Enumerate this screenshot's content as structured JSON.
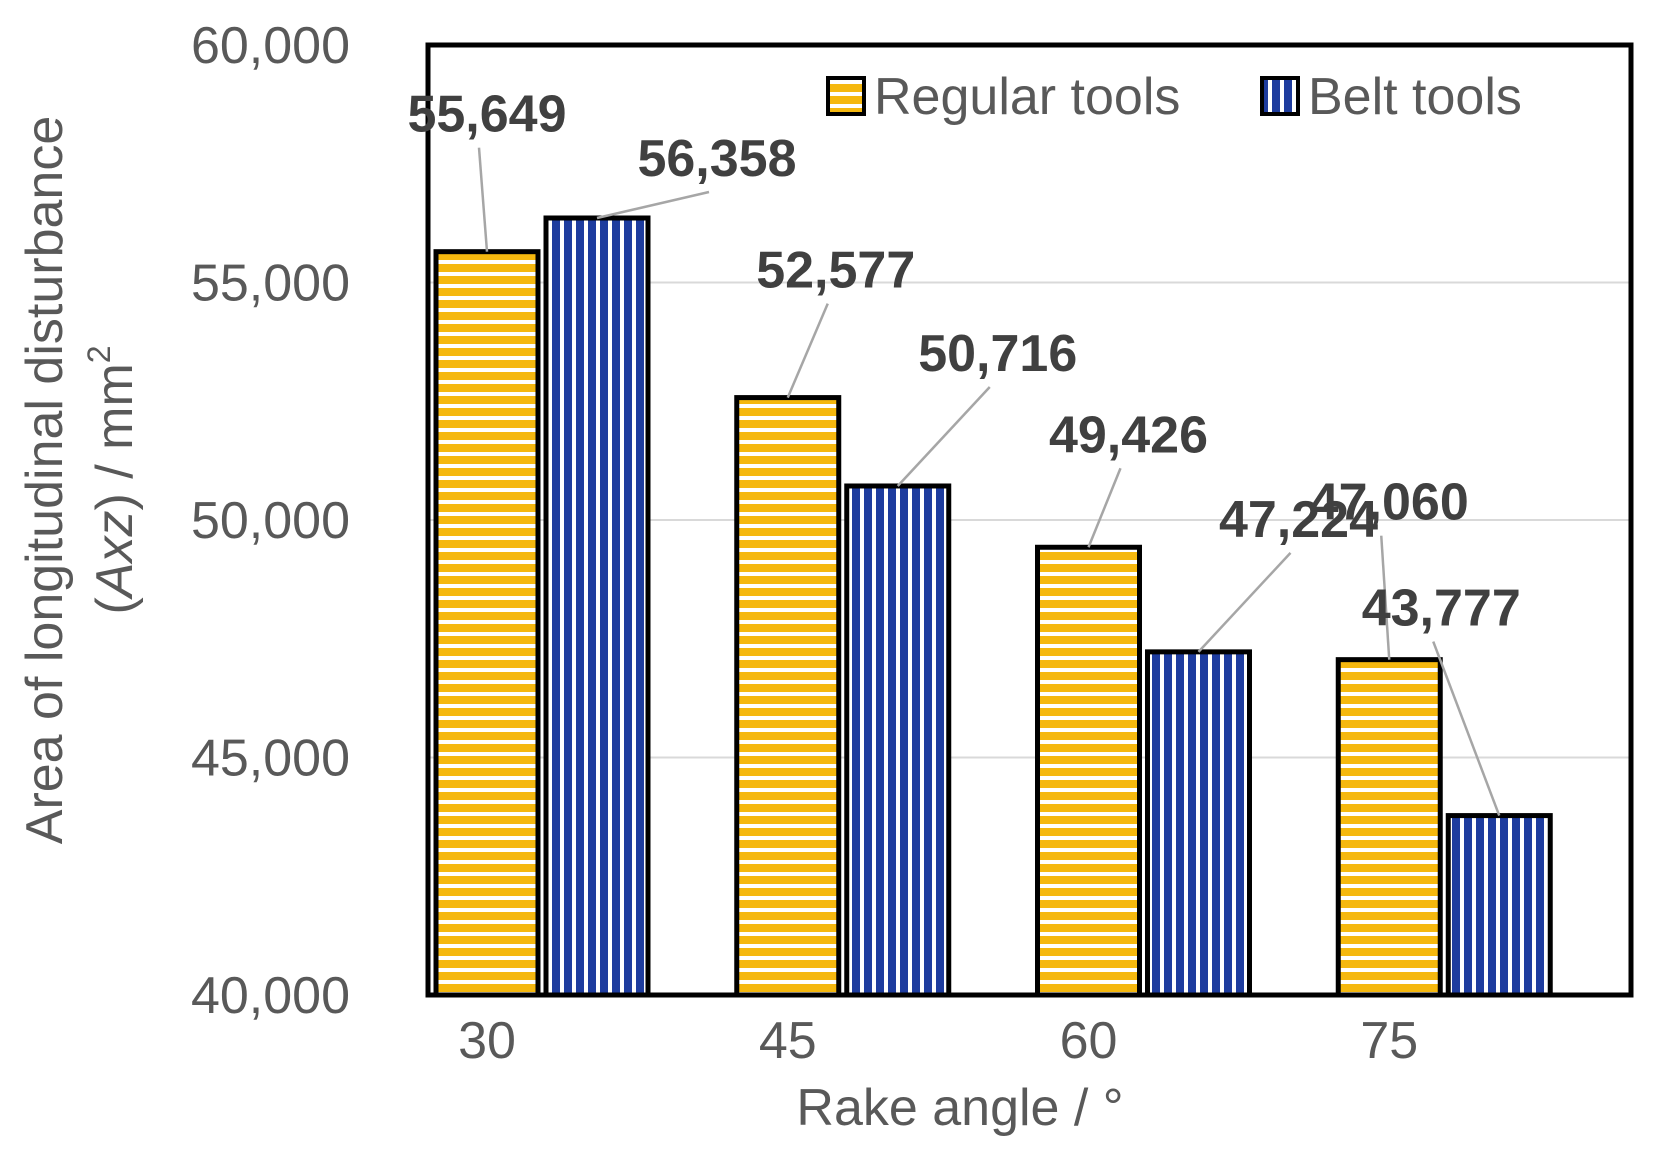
{
  "chart_data": {
    "type": "bar",
    "categories": [
      "30",
      "45",
      "60",
      "75"
    ],
    "series": [
      {
        "name": "Regular tools",
        "values": [
          55649,
          52577,
          49426,
          47060
        ],
        "value_labels": [
          "55,649",
          "52,577",
          "49,426",
          "47,060"
        ],
        "fill": "#f5b80f",
        "stripe": "horizontal"
      },
      {
        "name": "Belt tools",
        "values": [
          56358,
          50716,
          47224,
          43777
        ],
        "value_labels": [
          "56,358",
          "50,716",
          "47,224",
          "43,777"
        ],
        "fill": "#1e3c9e",
        "stripe": "vertical"
      }
    ],
    "title": "",
    "xlabel": "Rake angle / °",
    "ylabel_parts": {
      "line1": "Area of longitudinal disturbance",
      "line2_open": "(",
      "line2_italic": "Axz",
      "line2_rest": ") / mm",
      "line2_sup": "2"
    },
    "ylim": [
      40000,
      60000
    ],
    "yticks": [
      40000,
      45000,
      50000,
      55000,
      60000
    ],
    "ytick_labels": [
      "40,000",
      "45,000",
      "50,000",
      "55,000",
      "60,000"
    ],
    "grid": true,
    "legend_position": "top-right",
    "colors": {
      "regular": "#f5b80f",
      "belt": "#1e3c9e",
      "gridline": "#d9d9d9",
      "frame": "#000000",
      "text": "#595959",
      "label_text": "#404040",
      "leader": "#a6a6a6"
    }
  }
}
